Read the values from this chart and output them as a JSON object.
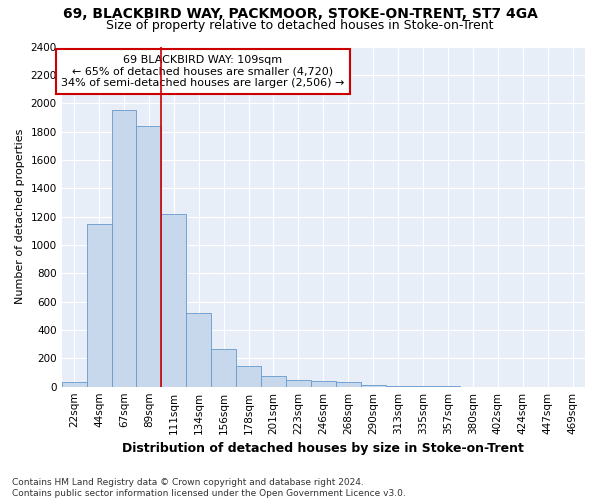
{
  "title1": "69, BLACKBIRD WAY, PACKMOOR, STOKE-ON-TRENT, ST7 4GA",
  "title2": "Size of property relative to detached houses in Stoke-on-Trent",
  "xlabel": "Distribution of detached houses by size in Stoke-on-Trent",
  "ylabel": "Number of detached properties",
  "footer1": "Contains HM Land Registry data © Crown copyright and database right 2024.",
  "footer2": "Contains public sector information licensed under the Open Government Licence v3.0.",
  "categories": [
    "22sqm",
    "44sqm",
    "67sqm",
    "89sqm",
    "111sqm",
    "134sqm",
    "156sqm",
    "178sqm",
    "201sqm",
    "223sqm",
    "246sqm",
    "268sqm",
    "290sqm",
    "313sqm",
    "335sqm",
    "357sqm",
    "380sqm",
    "402sqm",
    "424sqm",
    "447sqm",
    "469sqm"
  ],
  "values": [
    30,
    1150,
    1950,
    1840,
    1220,
    520,
    265,
    148,
    75,
    45,
    40,
    30,
    10,
    5,
    3,
    2,
    1,
    1,
    0,
    0,
    0
  ],
  "bar_color": "#c8d8ec",
  "bar_edge_color": "#6699cc",
  "red_line_index": 3.5,
  "annotation_title": "69 BLACKBIRD WAY: 109sqm",
  "annotation_line1": "← 65% of detached houses are smaller (4,720)",
  "annotation_line2": "34% of semi-detached houses are larger (2,506) →",
  "annotation_box_facecolor": "#ffffff",
  "annotation_box_edgecolor": "#cc0000",
  "red_line_color": "#cc0000",
  "ylim": [
    0,
    2400
  ],
  "yticks": [
    0,
    200,
    400,
    600,
    800,
    1000,
    1200,
    1400,
    1600,
    1800,
    2000,
    2200,
    2400
  ],
  "background_color": "#ffffff",
  "plot_bg_color": "#e8eef8",
  "grid_color": "#ffffff",
  "title1_fontsize": 10,
  "title2_fontsize": 9,
  "xlabel_fontsize": 9,
  "ylabel_fontsize": 8,
  "tick_fontsize": 7.5,
  "annotation_fontsize": 8,
  "footer_fontsize": 6.5
}
